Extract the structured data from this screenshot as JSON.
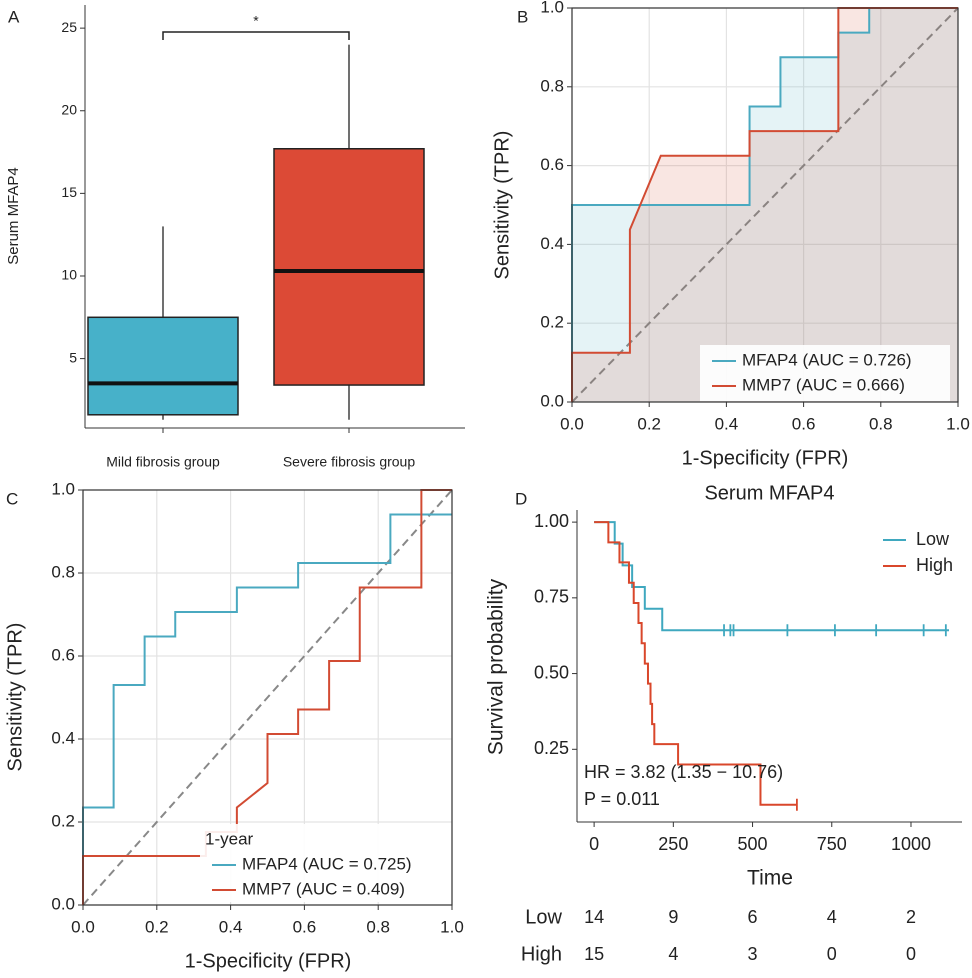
{
  "chart_data": [
    {
      "type": "box",
      "panel_label": "A",
      "y_label": "Serum MFAP4",
      "categories": [
        "Mild fibrosis group",
        "Severe fibrosis group"
      ],
      "boxes": [
        {
          "low": 1.3,
          "q1": 1.6,
          "median": 3.5,
          "q3": 7.5,
          "high": 13
        },
        {
          "low": 1.3,
          "q1": 3.4,
          "median": 10.3,
          "q3": 17.7,
          "high": 24
        }
      ],
      "colors": [
        "#47b1c9",
        "#dc4a36"
      ],
      "ylim": [
        0.8,
        26.4
      ],
      "yticks": [
        5,
        10,
        15,
        20,
        25
      ],
      "significance": "*"
    },
    {
      "type": "line",
      "panel_label": "B",
      "x_label": "1-Specificity (FPR)",
      "y_label": "Sensitivity (TPR)",
      "xlim": [
        0,
        1
      ],
      "ylim": [
        0,
        1
      ],
      "grid": true,
      "xticks": [
        {
          "value": 0,
          "label": "0.0"
        },
        0.2,
        0.4,
        0.6,
        0.8,
        {
          "value": 1,
          "label": "1.0"
        }
      ],
      "yticks": [
        {
          "value": 0,
          "label": "0.0"
        },
        0.2,
        0.4,
        0.6,
        0.8,
        {
          "value": 1,
          "label": "1.0"
        }
      ],
      "series": [
        {
          "name": "MFAP4 (AUC = 0.726)",
          "color": "#4aa9c0",
          "x": [
            0,
            0,
            0.46,
            0.46,
            0.54,
            0.54,
            0.69,
            0.69,
            0.77,
            0.77,
            1
          ],
          "values": [
            0,
            0.5,
            0.5,
            0.75,
            0.75,
            0.875,
            0.875,
            0.9375,
            0.9375,
            1,
            1
          ]
        },
        {
          "name": "MMP7 (AUC = 0.666)",
          "color": "#d24b33",
          "x": [
            0,
            0,
            0.15,
            0.15,
            0.23,
            0.46,
            0.46,
            0.69,
            0.69,
            1
          ],
          "values": [
            0,
            0.125,
            0.125,
            0.4375,
            0.625,
            0.625,
            0.6875,
            0.6875,
            1,
            1
          ]
        }
      ]
    },
    {
      "type": "line",
      "panel_label": "C",
      "x_label": "1-Specificity (FPR)",
      "y_label": "Sensitivity (TPR)",
      "legend_title": "1-year",
      "xlim": [
        0,
        1
      ],
      "ylim": [
        0,
        1
      ],
      "grid": true,
      "xticks": [
        {
          "value": 0,
          "label": "0.0"
        },
        0.2,
        0.4,
        0.6,
        0.8,
        {
          "value": 1,
          "label": "1.0"
        }
      ],
      "yticks": [
        {
          "value": 0,
          "label": "0.0"
        },
        0.2,
        0.4,
        0.6,
        0.8,
        {
          "value": 1,
          "label": "1.0"
        }
      ],
      "series": [
        {
          "name": "MFAP4 (AUC = 0.725)",
          "color": "#4aa9c0",
          "x": [
            0,
            0,
            0.083,
            0.083,
            0.167,
            0.167,
            0.25,
            0.25,
            0.417,
            0.417,
            0.583,
            0.583,
            0.833,
            0.833,
            1
          ],
          "values": [
            0,
            0.235,
            0.235,
            0.53,
            0.53,
            0.647,
            0.647,
            0.706,
            0.706,
            0.765,
            0.765,
            0.824,
            0.824,
            0.941,
            0.941
          ]
        },
        {
          "name": "MMP7 (AUC = 0.409)",
          "color": "#d24b33",
          "x": [
            0,
            0,
            0.333,
            0.333,
            0.417,
            0.417,
            0.5,
            0.5,
            0.583,
            0.583,
            0.667,
            0.667,
            0.75,
            0.75,
            0.917,
            0.917,
            1
          ],
          "values": [
            0,
            0.118,
            0.118,
            0.176,
            0.176,
            0.235,
            0.294,
            0.412,
            0.412,
            0.471,
            0.471,
            0.588,
            0.588,
            0.765,
            0.765,
            1,
            1
          ]
        }
      ]
    },
    {
      "type": "survival",
      "panel_label": "D",
      "title": "Serum MFAP4",
      "x_label": "Time",
      "y_label": "Survival probability",
      "xlim": [
        -54,
        1161
      ],
      "ylim": [
        0.01,
        1.04
      ],
      "xticks": [
        0,
        250,
        500,
        750,
        1000
      ],
      "yticks": [
        {
          "value": 0.25,
          "label": "0.25"
        },
        {
          "value": 0.5,
          "label": "0.50"
        },
        {
          "value": 0.75,
          "label": "0.75"
        },
        {
          "value": 1,
          "label": "1.00"
        }
      ],
      "series": [
        {
          "name": "Low",
          "color": "#3fa8bf",
          "x": [
            0,
            65,
            65,
            90,
            90,
            120,
            120,
            160,
            160,
            215,
            215,
            1120
          ],
          "values": [
            1,
            1,
            0.929,
            0.929,
            0.857,
            0.857,
            0.786,
            0.786,
            0.714,
            0.714,
            0.643,
            0.643
          ],
          "censor_x": [
            410,
            430,
            440,
            610,
            760,
            890,
            1040,
            1110
          ],
          "censor_values": [
            0.643,
            0.643,
            0.643,
            0.643,
            0.643,
            0.643,
            0.643,
            0.643
          ]
        },
        {
          "name": "High",
          "color": "#d9472b",
          "x": [
            0,
            45,
            45,
            80,
            80,
            110,
            110,
            125,
            125,
            140,
            140,
            150,
            150,
            160,
            160,
            170,
            170,
            178,
            178,
            183,
            183,
            190,
            190,
            265,
            265,
            525,
            525,
            640
          ],
          "values": [
            1,
            1,
            0.933,
            0.933,
            0.867,
            0.867,
            0.8,
            0.8,
            0.733,
            0.733,
            0.667,
            0.667,
            0.6,
            0.6,
            0.533,
            0.533,
            0.467,
            0.467,
            0.4,
            0.4,
            0.333,
            0.333,
            0.267,
            0.267,
            0.2,
            0.2,
            0.067,
            0.067
          ],
          "censor_x": [
            640
          ],
          "censor_values": [
            0.067
          ]
        }
      ],
      "annotations": [
        "HR = 3.82 (1.35 − 10.76)",
        "P = 0.011"
      ],
      "risk_table": {
        "x": [
          0,
          250,
          500,
          750,
          1000
        ],
        "rows": [
          {
            "name": "Low",
            "color": "#3fa8bf",
            "values": [
              14,
              9,
              6,
              4,
              2
            ]
          },
          {
            "name": "High",
            "color": "#d9472b",
            "values": [
              15,
              4,
              3,
              0,
              0
            ]
          }
        ]
      }
    }
  ]
}
